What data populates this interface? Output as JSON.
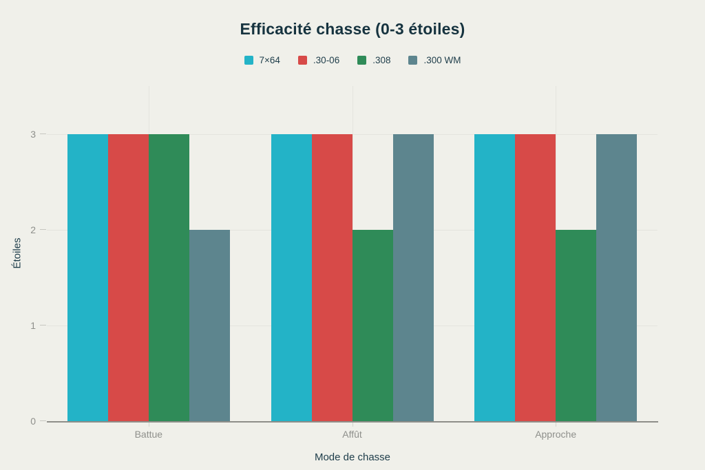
{
  "title": "Efficacité chasse (0-3 étoiles)",
  "chart_data": {
    "type": "bar",
    "categories": [
      "Battue",
      "Affût",
      "Approche"
    ],
    "series": [
      {
        "name": "7×64",
        "color": "#23b3c7",
        "values": [
          3,
          3,
          3
        ]
      },
      {
        "name": ".30-06",
        "color": "#d74a48",
        "values": [
          3,
          3,
          3
        ]
      },
      {
        "name": ".308",
        "color": "#2f8b58",
        "values": [
          3,
          2,
          2
        ]
      },
      {
        "name": ".300 WM",
        "color": "#5d858e",
        "values": [
          2,
          3,
          3
        ]
      }
    ],
    "title": "Efficacité chasse (0-3 étoiles)",
    "xlabel": "Mode de chasse",
    "ylabel": "Étoiles",
    "ylim": [
      0,
      3.5
    ],
    "yticks": [
      0,
      1,
      2,
      3
    ],
    "grid": true,
    "legend_position": "top"
  },
  "colors": {
    "background": "#f0f0ea",
    "title_text": "#16333f",
    "axis_title_text": "#1d3c49",
    "tick_label_text": "#8e8f8b",
    "gridline": "#e4e4de",
    "axis_line": "#8e8e89"
  }
}
